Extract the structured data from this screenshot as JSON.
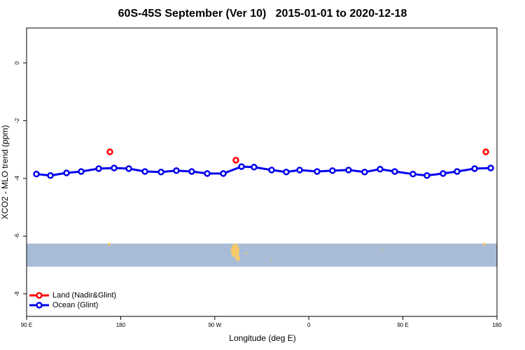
{
  "chart_data": {
    "type": "line",
    "title": "60S-45S September (Ver 10)   2015-01-01 to 2020-12-18",
    "x_label": "Longitude (deg E)",
    "y_label": "XCO2 - MLO trend (ppm)",
    "xlim": [
      90,
      540
    ],
    "ylim": [
      -8.78,
      1.21
    ],
    "xticks": [
      {
        "value": 90,
        "label": "90 E"
      },
      180,
      {
        "value": 270,
        "label": "90 W"
      },
      {
        "value": 360,
        "label": "0"
      },
      {
        "value": 450,
        "label": "90 E"
      },
      {
        "value": 540,
        "label": "180"
      }
    ],
    "yticks": [
      0,
      -2,
      -4,
      -6,
      -8
    ],
    "legend": "bottom-left",
    "series": [
      {
        "name": "Land (Nadir&Glint)",
        "color": "#ff0000",
        "connected": false,
        "x": [
          169.7,
          290.2,
          529.3
        ],
        "values": [
          -3.08,
          -3.37,
          -3.08
        ]
      },
      {
        "name": "Ocean (Glint)",
        "color": "#0000ee",
        "connected": true,
        "x": [
          99.4,
          112.8,
          128.2,
          142.2,
          159.0,
          173.7,
          187.8,
          203.2,
          218.6,
          233.3,
          248.0,
          262.8,
          278.2,
          295.6,
          307.6,
          324.4,
          338.4,
          351.2,
          367.9,
          382.6,
          398.0,
          413.4,
          428.2,
          442.2,
          459.6,
          473.0,
          488.4,
          501.8,
          518.6,
          534.0
        ],
        "values": [
          -3.85,
          -3.9,
          -3.81,
          -3.76,
          -3.66,
          -3.64,
          -3.66,
          -3.76,
          -3.78,
          -3.73,
          -3.76,
          -3.83,
          -3.83,
          -3.59,
          -3.61,
          -3.71,
          -3.78,
          -3.71,
          -3.76,
          -3.73,
          -3.71,
          -3.78,
          -3.68,
          -3.76,
          -3.85,
          -3.9,
          -3.83,
          -3.76,
          -3.66,
          -3.64
        ]
      }
    ]
  }
}
